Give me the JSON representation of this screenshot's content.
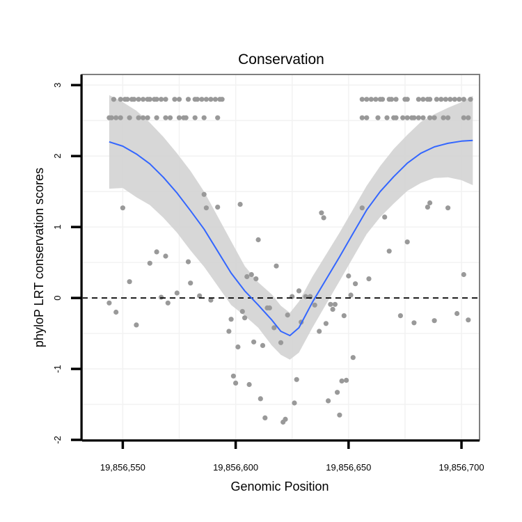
{
  "chart_data": {
    "type": "scatter",
    "title": "Conservation",
    "xlabel": "Genomic Position",
    "ylabel": "phyloP LRT conservation scores",
    "xlim": [
      19856532,
      19856708
    ],
    "ylim": [
      -2,
      3.15
    ],
    "x_ticks": [
      19856550,
      19856600,
      19856650,
      19856700
    ],
    "x_tick_labels": [
      "19,856,550",
      "19,856,600",
      "19,856,650",
      "19,856,700"
    ],
    "y_ticks": [
      -2,
      -1,
      0,
      1,
      2,
      3
    ],
    "y_tick_labels": [
      "-2",
      "-1",
      "0",
      "1",
      "2",
      "3"
    ],
    "reference_line": {
      "y": 0,
      "style": "dashed"
    },
    "colors": {
      "points": "#999999",
      "smooth": "#3366ff",
      "band": "#d3d3d3",
      "border": "#7f7f7f",
      "grid": "#f2f2f2"
    },
    "points": [
      [
        19856544,
        2.54
      ],
      [
        19856545,
        2.54
      ],
      [
        19856547,
        2.54
      ],
      [
        19856549,
        2.54
      ],
      [
        19856546,
        2.8
      ],
      [
        19856549,
        2.8
      ],
      [
        19856551,
        2.8
      ],
      [
        19856552,
        2.8
      ],
      [
        19856554,
        2.8
      ],
      [
        19856555,
        2.8
      ],
      [
        19856557,
        2.8
      ],
      [
        19856559,
        2.8
      ],
      [
        19856561,
        2.8
      ],
      [
        19856562,
        2.8
      ],
      [
        19856564,
        2.8
      ],
      [
        19856565,
        2.8
      ],
      [
        19856567,
        2.8
      ],
      [
        19856569,
        2.8
      ],
      [
        19856573,
        2.8
      ],
      [
        19856575,
        2.8
      ],
      [
        19856579,
        2.8
      ],
      [
        19856582,
        2.8
      ],
      [
        19856583,
        2.8
      ],
      [
        19856585,
        2.8
      ],
      [
        19856587,
        2.8
      ],
      [
        19856589,
        2.8
      ],
      [
        19856591,
        2.8
      ],
      [
        19856593,
        2.8
      ],
      [
        19856594,
        2.8
      ],
      [
        19856553,
        2.54
      ],
      [
        19856557,
        2.54
      ],
      [
        19856559,
        2.54
      ],
      [
        19856561,
        2.54
      ],
      [
        19856565,
        2.54
      ],
      [
        19856569,
        2.54
      ],
      [
        19856571,
        2.54
      ],
      [
        19856575,
        2.54
      ],
      [
        19856577,
        2.54
      ],
      [
        19856578,
        2.54
      ],
      [
        19856582,
        2.54
      ],
      [
        19856586,
        2.54
      ],
      [
        19856592,
        2.54
      ],
      [
        19856656,
        2.8
      ],
      [
        19856658,
        2.8
      ],
      [
        19856660,
        2.8
      ],
      [
        19856662,
        2.8
      ],
      [
        19856664,
        2.8
      ],
      [
        19856665,
        2.8
      ],
      [
        19856668,
        2.8
      ],
      [
        19856669,
        2.8
      ],
      [
        19856671,
        2.8
      ],
      [
        19856675,
        2.8
      ],
      [
        19856676,
        2.8
      ],
      [
        19856681,
        2.8
      ],
      [
        19856683,
        2.8
      ],
      [
        19856685,
        2.8
      ],
      [
        19856686,
        2.8
      ],
      [
        19856689,
        2.8
      ],
      [
        19856691,
        2.8
      ],
      [
        19856693,
        2.8
      ],
      [
        19856695,
        2.8
      ],
      [
        19856697,
        2.8
      ],
      [
        19856699,
        2.8
      ],
      [
        19856701,
        2.8
      ],
      [
        19856704,
        2.8
      ],
      [
        19856656,
        2.54
      ],
      [
        19856658,
        2.54
      ],
      [
        19856663,
        2.54
      ],
      [
        19856667,
        2.54
      ],
      [
        19856670,
        2.54
      ],
      [
        19856671,
        2.54
      ],
      [
        19856674,
        2.54
      ],
      [
        19856676,
        2.54
      ],
      [
        19856678,
        2.54
      ],
      [
        19856679,
        2.54
      ],
      [
        19856681,
        2.54
      ],
      [
        19856683,
        2.54
      ],
      [
        19856686,
        2.54
      ],
      [
        19856688,
        2.54
      ],
      [
        19856692,
        2.54
      ],
      [
        19856694,
        2.54
      ],
      [
        19856701,
        2.54
      ],
      [
        19856703,
        2.54
      ],
      [
        19856550,
        1.27
      ],
      [
        19856544,
        -0.07
      ],
      [
        19856547,
        -0.2
      ],
      [
        19856553,
        0.23
      ],
      [
        19856556,
        -0.38
      ],
      [
        19856562,
        0.49
      ],
      [
        19856565,
        0.65
      ],
      [
        19856567,
        0.01
      ],
      [
        19856569,
        0.59
      ],
      [
        19856570,
        -0.07
      ],
      [
        19856574,
        0.07
      ],
      [
        19856579,
        0.51
      ],
      [
        19856580,
        0.21
      ],
      [
        19856584,
        0.03
      ],
      [
        19856586,
        1.46
      ],
      [
        19856587,
        1.27
      ],
      [
        19856589,
        -0.03
      ],
      [
        19856592,
        1.28
      ],
      [
        19856597,
        -0.47
      ],
      [
        19856598,
        -0.3
      ],
      [
        19856599,
        -1.1
      ],
      [
        19856600,
        -1.2
      ],
      [
        19856601,
        -0.69
      ],
      [
        19856602,
        1.32
      ],
      [
        19856603,
        -0.19
      ],
      [
        19856604,
        -0.28
      ],
      [
        19856605,
        0.3
      ],
      [
        19856606,
        -1.22
      ],
      [
        19856607,
        0.33
      ],
      [
        19856608,
        -0.62
      ],
      [
        19856609,
        0.27
      ],
      [
        19856610,
        0.82
      ],
      [
        19856611,
        -1.42
      ],
      [
        19856612,
        -0.67
      ],
      [
        19856613,
        -1.69
      ],
      [
        19856614,
        -0.14
      ],
      [
        19856615,
        -0.14
      ],
      [
        19856617,
        -0.42
      ],
      [
        19856618,
        0.45
      ],
      [
        19856620,
        -0.63
      ],
      [
        19856621,
        -1.75
      ],
      [
        19856622,
        -1.71
      ],
      [
        19856623,
        -0.24
      ],
      [
        19856625,
        0.02
      ],
      [
        19856626,
        -1.48
      ],
      [
        19856627,
        -1.15
      ],
      [
        19856628,
        0.1
      ],
      [
        19856629,
        -0.34
      ],
      [
        19856631,
        0.02
      ],
      [
        19856633,
        0.02
      ],
      [
        19856635,
        -0.1
      ],
      [
        19856637,
        -0.47
      ],
      [
        19856638,
        1.2
      ],
      [
        19856639,
        1.13
      ],
      [
        19856640,
        -0.36
      ],
      [
        19856641,
        -1.45
      ],
      [
        19856642,
        -0.09
      ],
      [
        19856643,
        -0.16
      ],
      [
        19856644,
        -0.09
      ],
      [
        19856645,
        -1.33
      ],
      [
        19856646,
        -1.65
      ],
      [
        19856647,
        -1.17
      ],
      [
        19856648,
        -0.25
      ],
      [
        19856649,
        -1.16
      ],
      [
        19856650,
        0.31
      ],
      [
        19856651,
        0.04
      ],
      [
        19856652,
        -0.84
      ],
      [
        19856653,
        0.2
      ],
      [
        19856656,
        1.27
      ],
      [
        19856659,
        0.27
      ],
      [
        19856666,
        1.14
      ],
      [
        19856668,
        0.66
      ],
      [
        19856673,
        -0.25
      ],
      [
        19856676,
        0.79
      ],
      [
        19856679,
        -0.35
      ],
      [
        19856685,
        1.28
      ],
      [
        19856686,
        1.34
      ],
      [
        19856688,
        -0.32
      ],
      [
        19856694,
        1.27
      ],
      [
        19856698,
        -0.22
      ],
      [
        19856701,
        0.33
      ],
      [
        19856703,
        -0.31
      ]
    ],
    "smooth": {
      "x": [
        19856544,
        19856550,
        19856556,
        19856562,
        19856568,
        19856574,
        19856580,
        19856586,
        19856592,
        19856598,
        19856604,
        19856610,
        19856616,
        19856620,
        19856624,
        19856628,
        19856634,
        19856640,
        19856646,
        19856652,
        19856658,
        19856664,
        19856670,
        19856676,
        19856682,
        19856688,
        19856694,
        19856700,
        19856705
      ],
      "y": [
        2.2,
        2.14,
        2.03,
        1.89,
        1.7,
        1.48,
        1.23,
        0.97,
        0.66,
        0.35,
        0.1,
        -0.1,
        -0.31,
        -0.47,
        -0.53,
        -0.42,
        -0.06,
        0.26,
        0.58,
        0.91,
        1.24,
        1.5,
        1.71,
        1.9,
        2.04,
        2.13,
        2.18,
        2.21,
        2.22
      ],
      "ci_upper": [
        2.86,
        2.76,
        2.64,
        2.47,
        2.27,
        2.04,
        1.79,
        1.5,
        1.15,
        0.8,
        0.45,
        0.22,
        0.05,
        -0.11,
        -0.21,
        -0.05,
        0.3,
        0.61,
        0.92,
        1.25,
        1.58,
        1.86,
        2.1,
        2.3,
        2.48,
        2.59,
        2.68,
        2.76,
        2.85
      ],
      "ci_lower": [
        1.54,
        1.55,
        1.42,
        1.31,
        1.13,
        0.92,
        0.67,
        0.44,
        0.17,
        -0.1,
        -0.25,
        -0.42,
        -0.67,
        -0.8,
        -0.87,
        -0.77,
        -0.42,
        -0.09,
        0.24,
        0.57,
        0.9,
        1.14,
        1.33,
        1.51,
        1.62,
        1.69,
        1.7,
        1.66,
        1.59
      ]
    }
  }
}
